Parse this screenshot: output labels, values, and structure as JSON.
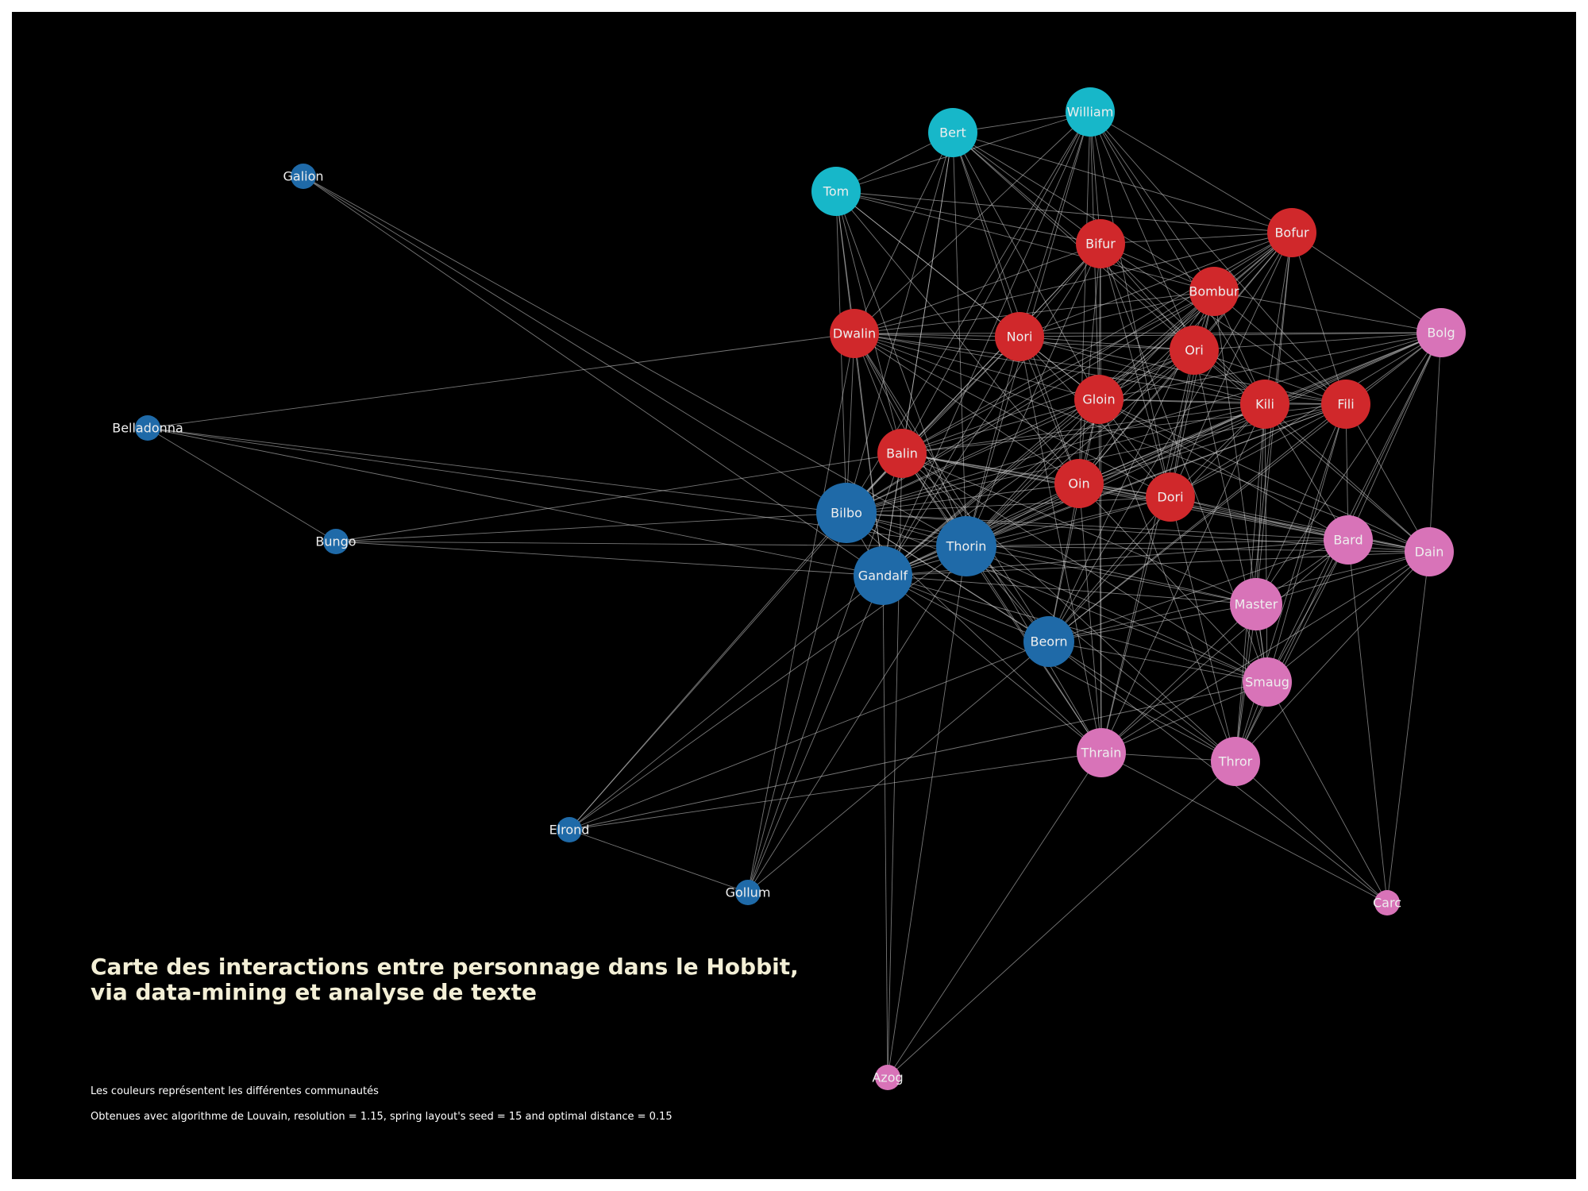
{
  "title": "Carte des interactions entre personnage dans le Hobbit,\nvia data-mining et analyse de texte",
  "captions": [
    "Les couleurs représentent les différentes communautés",
    "Obtenues avec algorithme de Louvain, resolution = 1.15, spring layout's seed = 15 and optimal distance = 0.15"
  ],
  "colors": {
    "background": "#000000",
    "edge": "#d8d8d8",
    "communities": {
      "blue": "#1f6aa8",
      "cyan": "#17b7c9",
      "red": "#d0282b",
      "pink": "#d873b8"
    }
  },
  "nodes": [
    {
      "name": "Galion",
      "community": "blue",
      "degree": "low"
    },
    {
      "name": "Belladonna",
      "community": "blue",
      "degree": "low"
    },
    {
      "name": "Bungo",
      "community": "blue",
      "degree": "low"
    },
    {
      "name": "Elrond",
      "community": "blue",
      "degree": "low"
    },
    {
      "name": "Gollum",
      "community": "blue",
      "degree": "low"
    },
    {
      "name": "Bilbo",
      "community": "blue",
      "degree": "high"
    },
    {
      "name": "Gandalf",
      "community": "blue",
      "degree": "high"
    },
    {
      "name": "Thorin",
      "community": "blue",
      "degree": "high"
    },
    {
      "name": "Beorn",
      "community": "blue",
      "degree": "medium"
    },
    {
      "name": "Tom",
      "community": "cyan",
      "degree": "medium"
    },
    {
      "name": "Bert",
      "community": "cyan",
      "degree": "medium"
    },
    {
      "name": "William",
      "community": "cyan",
      "degree": "medium"
    },
    {
      "name": "Bifur",
      "community": "red",
      "degree": "medium"
    },
    {
      "name": "Bofur",
      "community": "red",
      "degree": "medium"
    },
    {
      "name": "Bombur",
      "community": "red",
      "degree": "medium"
    },
    {
      "name": "Dwalin",
      "community": "red",
      "degree": "medium"
    },
    {
      "name": "Nori",
      "community": "red",
      "degree": "medium"
    },
    {
      "name": "Ori",
      "community": "red",
      "degree": "medium"
    },
    {
      "name": "Gloin",
      "community": "red",
      "degree": "medium"
    },
    {
      "name": "Kili",
      "community": "red",
      "degree": "medium"
    },
    {
      "name": "Fili",
      "community": "red",
      "degree": "medium"
    },
    {
      "name": "Balin",
      "community": "red",
      "degree": "medium"
    },
    {
      "name": "Oin",
      "community": "red",
      "degree": "medium"
    },
    {
      "name": "Dori",
      "community": "red",
      "degree": "medium"
    },
    {
      "name": "Bolg",
      "community": "pink",
      "degree": "medium"
    },
    {
      "name": "Bard",
      "community": "pink",
      "degree": "medium"
    },
    {
      "name": "Dain",
      "community": "pink",
      "degree": "medium"
    },
    {
      "name": "Master",
      "community": "pink",
      "degree": "medium"
    },
    {
      "name": "Smaug",
      "community": "pink",
      "degree": "medium"
    },
    {
      "name": "Thrain",
      "community": "pink",
      "degree": "medium"
    },
    {
      "name": "Thror",
      "community": "pink",
      "degree": "medium"
    },
    {
      "name": "Carc",
      "community": "pink",
      "degree": "low"
    },
    {
      "name": "Azog",
      "community": "pink",
      "degree": "low"
    }
  ],
  "edges": [
    [
      "Galion",
      "Bilbo"
    ],
    [
      "Galion",
      "Gandalf"
    ],
    [
      "Galion",
      "Thorin"
    ],
    [
      "Belladonna",
      "Bungo"
    ],
    [
      "Belladonna",
      "Dwalin"
    ],
    [
      "Belladonna",
      "Bilbo"
    ],
    [
      "Belladonna",
      "Thorin"
    ],
    [
      "Belladonna",
      "Gandalf"
    ],
    [
      "Bungo",
      "Bilbo"
    ],
    [
      "Bungo",
      "Gandalf"
    ],
    [
      "Bungo",
      "Thorin"
    ],
    [
      "Bungo",
      "Balin"
    ],
    [
      "Elrond",
      "Bilbo"
    ],
    [
      "Elrond",
      "Gandalf"
    ],
    [
      "Elrond",
      "Thorin"
    ],
    [
      "Elrond",
      "Beorn"
    ],
    [
      "Elrond",
      "Gollum"
    ],
    [
      "Elrond",
      "Thrain"
    ],
    [
      "Elrond",
      "Smaug"
    ],
    [
      "Elrond",
      "Balin"
    ],
    [
      "Gollum",
      "Bilbo"
    ],
    [
      "Gollum",
      "Gandalf"
    ],
    [
      "Gollum",
      "Thorin"
    ],
    [
      "Gollum",
      "Beorn"
    ],
    [
      "Gollum",
      "Balin"
    ],
    [
      "Gollum",
      "Dwalin"
    ],
    [
      "Azog",
      "Gandalf"
    ],
    [
      "Azog",
      "Thorin"
    ],
    [
      "Azog",
      "Thrain"
    ],
    [
      "Azog",
      "Thror"
    ],
    [
      "Azog",
      "Balin"
    ],
    [
      "Carc",
      "Thrain"
    ],
    [
      "Carc",
      "Thror"
    ],
    [
      "Carc",
      "Dain"
    ],
    [
      "Carc",
      "Smaug"
    ],
    [
      "Carc",
      "Bard"
    ],
    [
      "Carc",
      "Beorn"
    ],
    [
      "Tom",
      "Bert"
    ],
    [
      "Tom",
      "William"
    ],
    [
      "Tom",
      "Bilbo"
    ],
    [
      "Tom",
      "Gandalf"
    ],
    [
      "Tom",
      "Thorin"
    ],
    [
      "Tom",
      "Dwalin"
    ],
    [
      "Tom",
      "Balin"
    ],
    [
      "Tom",
      "Bombur"
    ],
    [
      "Tom",
      "Bifur"
    ],
    [
      "Tom",
      "Bofur"
    ],
    [
      "Tom",
      "Oin"
    ],
    [
      "Tom",
      "Gloin"
    ],
    [
      "Tom",
      "Nori"
    ],
    [
      "Bert",
      "William"
    ],
    [
      "Bert",
      "Bilbo"
    ],
    [
      "Bert",
      "Gandalf"
    ],
    [
      "Bert",
      "Thorin"
    ],
    [
      "Bert",
      "Dwalin"
    ],
    [
      "Bert",
      "Balin"
    ],
    [
      "Bert",
      "Bofur"
    ],
    [
      "Bert",
      "Bombur"
    ],
    [
      "Bert",
      "Bifur"
    ],
    [
      "Bert",
      "Oin"
    ],
    [
      "Bert",
      "Gloin"
    ],
    [
      "Bert",
      "Ori"
    ],
    [
      "Bert",
      "Nori"
    ],
    [
      "Bert",
      "Kili"
    ],
    [
      "William",
      "Bilbo"
    ],
    [
      "William",
      "Thorin"
    ],
    [
      "William",
      "Gandalf"
    ],
    [
      "William",
      "Balin"
    ],
    [
      "William",
      "Dwalin"
    ],
    [
      "William",
      "Bifur"
    ],
    [
      "William",
      "Bofur"
    ],
    [
      "William",
      "Bombur"
    ],
    [
      "William",
      "Oin"
    ],
    [
      "William",
      "Gloin"
    ],
    [
      "William",
      "Nori"
    ],
    [
      "William",
      "Ori"
    ],
    [
      "William",
      "Kili"
    ],
    [
      "William",
      "Fili"
    ],
    [
      "William",
      "Dori"
    ],
    [
      "Bilbo",
      "Gandalf"
    ],
    [
      "Bilbo",
      "Thorin"
    ],
    [
      "Bilbo",
      "Beorn"
    ],
    [
      "Bilbo",
      "Balin"
    ],
    [
      "Bilbo",
      "Dwalin"
    ],
    [
      "Bilbo",
      "Oin"
    ],
    [
      "Bilbo",
      "Gloin"
    ],
    [
      "Bilbo",
      "Dori"
    ],
    [
      "Bilbo",
      "Nori"
    ],
    [
      "Bilbo",
      "Ori"
    ],
    [
      "Bilbo",
      "Bifur"
    ],
    [
      "Bilbo",
      "Bofur"
    ],
    [
      "Bilbo",
      "Bombur"
    ],
    [
      "Bilbo",
      "Kili"
    ],
    [
      "Bilbo",
      "Fili"
    ],
    [
      "Bilbo",
      "Bard"
    ],
    [
      "Bilbo",
      "Dain"
    ],
    [
      "Bilbo",
      "Master"
    ],
    [
      "Bilbo",
      "Smaug"
    ],
    [
      "Bilbo",
      "Thrain"
    ],
    [
      "Bilbo",
      "Thror"
    ],
    [
      "Bilbo",
      "Bolg"
    ],
    [
      "Gandalf",
      "Thorin"
    ],
    [
      "Gandalf",
      "Beorn"
    ],
    [
      "Gandalf",
      "Balin"
    ],
    [
      "Gandalf",
      "Dwalin"
    ],
    [
      "Gandalf",
      "Oin"
    ],
    [
      "Gandalf",
      "Gloin"
    ],
    [
      "Gandalf",
      "Dori"
    ],
    [
      "Gandalf",
      "Nori"
    ],
    [
      "Gandalf",
      "Ori"
    ],
    [
      "Gandalf",
      "Bifur"
    ],
    [
      "Gandalf",
      "Bofur"
    ],
    [
      "Gandalf",
      "Bombur"
    ],
    [
      "Gandalf",
      "Kili"
    ],
    [
      "Gandalf",
      "Fili"
    ],
    [
      "Gandalf",
      "Bard"
    ],
    [
      "Gandalf",
      "Dain"
    ],
    [
      "Gandalf",
      "Master"
    ],
    [
      "Gandalf",
      "Smaug"
    ],
    [
      "Gandalf",
      "Thrain"
    ],
    [
      "Gandalf",
      "Thror"
    ],
    [
      "Gandalf",
      "Bolg"
    ],
    [
      "Thorin",
      "Beorn"
    ],
    [
      "Thorin",
      "Balin"
    ],
    [
      "Thorin",
      "Dwalin"
    ],
    [
      "Thorin",
      "Oin"
    ],
    [
      "Thorin",
      "Gloin"
    ],
    [
      "Thorin",
      "Dori"
    ],
    [
      "Thorin",
      "Nori"
    ],
    [
      "Thorin",
      "Ori"
    ],
    [
      "Thorin",
      "Bifur"
    ],
    [
      "Thorin",
      "Bofur"
    ],
    [
      "Thorin",
      "Bombur"
    ],
    [
      "Thorin",
      "Kili"
    ],
    [
      "Thorin",
      "Fili"
    ],
    [
      "Thorin",
      "Bard"
    ],
    [
      "Thorin",
      "Dain"
    ],
    [
      "Thorin",
      "Master"
    ],
    [
      "Thorin",
      "Smaug"
    ],
    [
      "Thorin",
      "Thrain"
    ],
    [
      "Thorin",
      "Thror"
    ],
    [
      "Thorin",
      "Bolg"
    ],
    [
      "Beorn",
      "Balin"
    ],
    [
      "Beorn",
      "Dwalin"
    ],
    [
      "Beorn",
      "Oin"
    ],
    [
      "Beorn",
      "Gloin"
    ],
    [
      "Beorn",
      "Dori"
    ],
    [
      "Beorn",
      "Bombur"
    ],
    [
      "Beorn",
      "Bofur"
    ],
    [
      "Beorn",
      "Kili"
    ],
    [
      "Beorn",
      "Fili"
    ],
    [
      "Beorn",
      "Bard"
    ],
    [
      "Beorn",
      "Dain"
    ],
    [
      "Beorn",
      "Smaug"
    ],
    [
      "Beorn",
      "Bolg"
    ],
    [
      "Beorn",
      "Master"
    ],
    [
      "Balin",
      "Dwalin"
    ],
    [
      "Balin",
      "Oin"
    ],
    [
      "Balin",
      "Gloin"
    ],
    [
      "Balin",
      "Dori"
    ],
    [
      "Balin",
      "Nori"
    ],
    [
      "Balin",
      "Ori"
    ],
    [
      "Balin",
      "Bifur"
    ],
    [
      "Balin",
      "Bofur"
    ],
    [
      "Balin",
      "Bombur"
    ],
    [
      "Balin",
      "Kili"
    ],
    [
      "Balin",
      "Fili"
    ],
    [
      "Balin",
      "Bard"
    ],
    [
      "Balin",
      "Dain"
    ],
    [
      "Balin",
      "Smaug"
    ],
    [
      "Balin",
      "Thrain"
    ],
    [
      "Balin",
      "Thror"
    ],
    [
      "Balin",
      "Master"
    ],
    [
      "Dwalin",
      "Oin"
    ],
    [
      "Dwalin",
      "Gloin"
    ],
    [
      "Dwalin",
      "Dori"
    ],
    [
      "Dwalin",
      "Nori"
    ],
    [
      "Dwalin",
      "Ori"
    ],
    [
      "Dwalin",
      "Bifur"
    ],
    [
      "Dwalin",
      "Bofur"
    ],
    [
      "Dwalin",
      "Bombur"
    ],
    [
      "Dwalin",
      "Kili"
    ],
    [
      "Dwalin",
      "Fili"
    ],
    [
      "Dwalin",
      "Bolg"
    ],
    [
      "Dwalin",
      "Dain"
    ],
    [
      "Dwalin",
      "Thrain"
    ],
    [
      "Oin",
      "Gloin"
    ],
    [
      "Oin",
      "Dori"
    ],
    [
      "Oin",
      "Nori"
    ],
    [
      "Oin",
      "Ori"
    ],
    [
      "Oin",
      "Bifur"
    ],
    [
      "Oin",
      "Bofur"
    ],
    [
      "Oin",
      "Bombur"
    ],
    [
      "Oin",
      "Kili"
    ],
    [
      "Oin",
      "Fili"
    ],
    [
      "Oin",
      "Bard"
    ],
    [
      "Oin",
      "Dain"
    ],
    [
      "Oin",
      "Bolg"
    ],
    [
      "Oin",
      "Thrain"
    ],
    [
      "Oin",
      "Smaug"
    ],
    [
      "Gloin",
      "Dori"
    ],
    [
      "Gloin",
      "Nori"
    ],
    [
      "Gloin",
      "Ori"
    ],
    [
      "Gloin",
      "Bifur"
    ],
    [
      "Gloin",
      "Bofur"
    ],
    [
      "Gloin",
      "Bombur"
    ],
    [
      "Gloin",
      "Kili"
    ],
    [
      "Gloin",
      "Fili"
    ],
    [
      "Gloin",
      "Bolg"
    ],
    [
      "Gloin",
      "Dain"
    ],
    [
      "Gloin",
      "Thrain"
    ],
    [
      "Gloin",
      "Thror"
    ],
    [
      "Gloin",
      "Bard"
    ],
    [
      "Dori",
      "Nori"
    ],
    [
      "Dori",
      "Ori"
    ],
    [
      "Dori",
      "Bifur"
    ],
    [
      "Dori",
      "Bofur"
    ],
    [
      "Dori",
      "Bombur"
    ],
    [
      "Dori",
      "Kili"
    ],
    [
      "Dori",
      "Fili"
    ],
    [
      "Dori",
      "Bolg"
    ],
    [
      "Dori",
      "Dain"
    ],
    [
      "Dori",
      "Bard"
    ],
    [
      "Dori",
      "Thror"
    ],
    [
      "Nori",
      "Ori"
    ],
    [
      "Nori",
      "Bifur"
    ],
    [
      "Nori",
      "Bofur"
    ],
    [
      "Nori",
      "Bombur"
    ],
    [
      "Nori",
      "Kili"
    ],
    [
      "Nori",
      "Fili"
    ],
    [
      "Nori",
      "Bolg"
    ],
    [
      "Nori",
      "Thrain"
    ],
    [
      "Ori",
      "Bifur"
    ],
    [
      "Ori",
      "Bofur"
    ],
    [
      "Ori",
      "Bombur"
    ],
    [
      "Ori",
      "Kili"
    ],
    [
      "Ori",
      "Fili"
    ],
    [
      "Ori",
      "Bolg"
    ],
    [
      "Ori",
      "Dain"
    ],
    [
      "Ori",
      "Thrain"
    ],
    [
      "Ori",
      "Smaug"
    ],
    [
      "Bifur",
      "Bofur"
    ],
    [
      "Bifur",
      "Bombur"
    ],
    [
      "Bifur",
      "Kili"
    ],
    [
      "Bifur",
      "Fili"
    ],
    [
      "Bifur",
      "Thrain"
    ],
    [
      "Bifur",
      "Smaug"
    ],
    [
      "Bofur",
      "Bombur"
    ],
    [
      "Bofur",
      "Kili"
    ],
    [
      "Bofur",
      "Fili"
    ],
    [
      "Bofur",
      "Bolg"
    ],
    [
      "Bofur",
      "Thror"
    ],
    [
      "Bofur",
      "Master"
    ],
    [
      "Bombur",
      "Kili"
    ],
    [
      "Bombur",
      "Fili"
    ],
    [
      "Bombur",
      "Bolg"
    ],
    [
      "Bombur",
      "Thrain"
    ],
    [
      "Bombur",
      "Smaug"
    ],
    [
      "Kili",
      "Fili"
    ],
    [
      "Kili",
      "Bolg"
    ],
    [
      "Kili",
      "Dain"
    ],
    [
      "Kili",
      "Bard"
    ],
    [
      "Kili",
      "Master"
    ],
    [
      "Kili",
      "Smaug"
    ],
    [
      "Kili",
      "Thrain"
    ],
    [
      "Kili",
      "Thror"
    ],
    [
      "Fili",
      "Bolg"
    ],
    [
      "Fili",
      "Dain"
    ],
    [
      "Fili",
      "Bard"
    ],
    [
      "Fili",
      "Master"
    ],
    [
      "Fili",
      "Smaug"
    ],
    [
      "Fili",
      "Thror"
    ],
    [
      "Bolg",
      "Dain"
    ],
    [
      "Bolg",
      "Bard"
    ],
    [
      "Bolg",
      "Master"
    ],
    [
      "Bolg",
      "Smaug"
    ],
    [
      "Bolg",
      "Thror"
    ],
    [
      "Bard",
      "Dain"
    ],
    [
      "Bard",
      "Master"
    ],
    [
      "Bard",
      "Smaug"
    ],
    [
      "Bard",
      "Thrain"
    ],
    [
      "Bard",
      "Thror"
    ],
    [
      "Dain",
      "Master"
    ],
    [
      "Dain",
      "Smaug"
    ],
    [
      "Dain",
      "Thrain"
    ],
    [
      "Dain",
      "Thror"
    ],
    [
      "Master",
      "Smaug"
    ],
    [
      "Master",
      "Thrain"
    ],
    [
      "Master",
      "Thror"
    ],
    [
      "Smaug",
      "Thrain"
    ],
    [
      "Smaug",
      "Thror"
    ],
    [
      "Thrain",
      "Thror"
    ]
  ]
}
